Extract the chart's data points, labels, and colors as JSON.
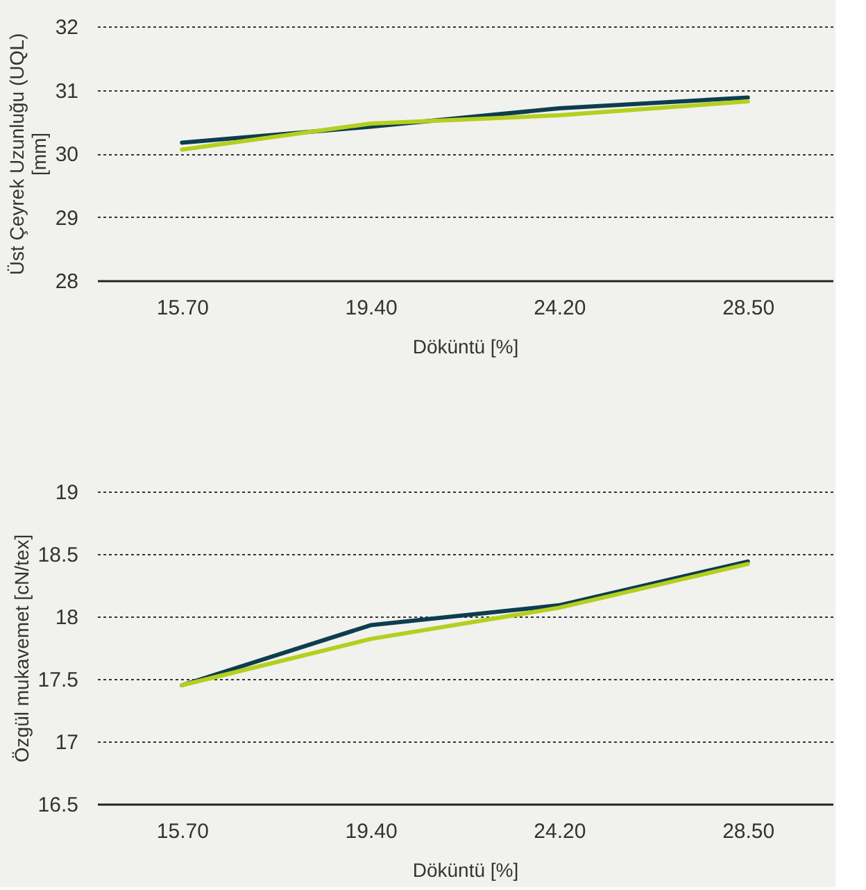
{
  "chart_data": [
    {
      "type": "line",
      "ylabel": "Üst Çeyrek Uzunluğu (UQL)\n[mm]",
      "xlabel": "Döküntü [%]",
      "categories": [
        "15.70",
        "19.40",
        "24.20",
        "28.50"
      ],
      "series": [
        {
          "color": "#0d3d4f",
          "values": [
            30.17,
            30.42,
            30.71,
            30.88
          ]
        },
        {
          "color": "#b5cf1f",
          "values": [
            30.06,
            30.47,
            30.6,
            30.82
          ]
        }
      ],
      "ylim": [
        28,
        32
      ],
      "yticks": [
        28,
        29,
        30,
        31,
        32
      ],
      "grid": "y",
      "legend": false,
      "marker": "none",
      "line_style": "solid"
    },
    {
      "type": "line",
      "ylabel": "Özgül mukavemet [cN/tex]",
      "xlabel": "Döküntü [%]",
      "categories": [
        "15.70",
        "19.40",
        "24.20",
        "28.50"
      ],
      "series": [
        {
          "color": "#0d3d4f",
          "values": [
            17.45,
            17.93,
            18.09,
            18.44
          ]
        },
        {
          "color": "#b5cf1f",
          "values": [
            17.45,
            17.82,
            18.07,
            18.42
          ]
        }
      ],
      "ylim": [
        16.5,
        19
      ],
      "yticks": [
        16.5,
        17,
        17.5,
        18,
        18.5,
        19
      ],
      "grid": "y",
      "legend": false,
      "marker": "none",
      "line_style": "solid"
    }
  ]
}
